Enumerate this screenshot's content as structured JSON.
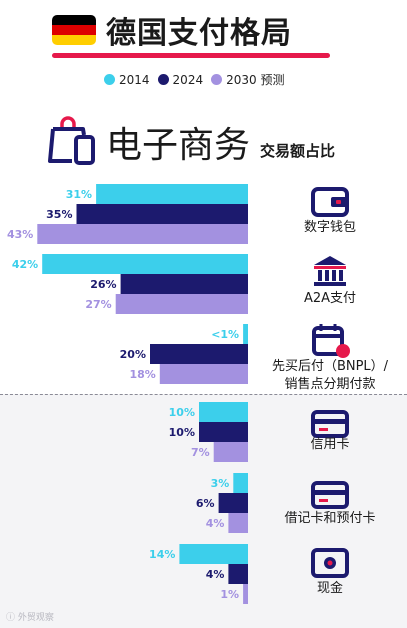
{
  "header": {
    "title": "德国支付格局",
    "flag_colors": [
      "#000000",
      "#dd0000",
      "#ffce00"
    ]
  },
  "legend": [
    {
      "label": "2014",
      "color": "#3ccfeb"
    },
    {
      "label": "2024",
      "color": "#1c1a6e"
    },
    {
      "label": "2030 预测",
      "color": "#a391e0"
    }
  ],
  "section": {
    "title": "电子商务",
    "subtitle": "交易额占比",
    "icon": "shopping-bag-phone-icon"
  },
  "chart_data": {
    "type": "bar",
    "orientation": "horizontal",
    "categories": [
      "数字钱包",
      "A2A支付",
      "先买后付（BNPL）/ 销售点分期付款",
      "信用卡",
      "借记卡和预付卡",
      "现金"
    ],
    "category_lines": [
      [
        "数字钱包"
      ],
      [
        "A2A支付"
      ],
      [
        "先买后付（BNPL）/",
        "销售点分期付款"
      ],
      [
        "信用卡"
      ],
      [
        "借记卡和预付卡"
      ],
      [
        "现金"
      ]
    ],
    "category_icons": [
      "wallet-icon",
      "bank-icon",
      "calendar-clock-icon",
      "credit-card-icon",
      "debit-card-icon",
      "cash-icon"
    ],
    "series": [
      {
        "name": "2014",
        "color": "#3ccfeb",
        "values": [
          31,
          42,
          1,
          10,
          3,
          14
        ],
        "labels": [
          "31%",
          "42%",
          "<1%",
          "10%",
          "3%",
          "14%"
        ]
      },
      {
        "name": "2024",
        "color": "#1c1a6e",
        "values": [
          35,
          26,
          20,
          10,
          6,
          4
        ],
        "labels": [
          "35%",
          "26%",
          "20%",
          "10%",
          "6%",
          "4%"
        ]
      },
      {
        "name": "2030 预测",
        "color": "#a391e0",
        "values": [
          43,
          27,
          18,
          7,
          4,
          1
        ],
        "labels": [
          "43%",
          "27%",
          "18%",
          "7%",
          "4%",
          "1%"
        ]
      }
    ],
    "label_colors": [
      "#3ccfeb",
      "#1c1a6e",
      "#a391e0"
    ]
  },
  "footer": {
    "text": "ⓘ 外贸观察"
  }
}
